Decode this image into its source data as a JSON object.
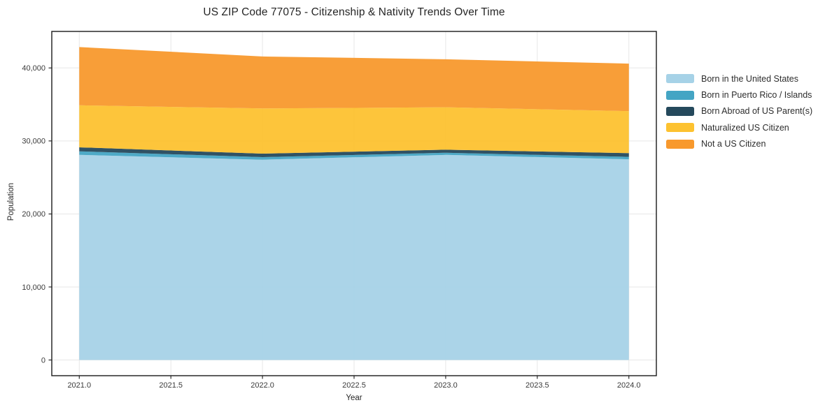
{
  "chart_data": {
    "type": "area",
    "stacked": true,
    "title": "US ZIP Code 77075 - Citizenship & Nativity Trends Over Time",
    "xlabel": "Year",
    "ylabel": "Population",
    "x": [
      2021,
      2022,
      2023,
      2024
    ],
    "series": [
      {
        "name": "Born in the United States",
        "color": "#a6d2e7",
        "values": [
          28100,
          27430,
          28090,
          27490
        ]
      },
      {
        "name": "Born in Puerto Rico / Islands",
        "color": "#44a5c4",
        "values": [
          480,
          350,
          290,
          330
        ]
      },
      {
        "name": "Born Abroad of US Parent(s)",
        "color": "#25495c",
        "values": [
          550,
          480,
          420,
          510
        ]
      },
      {
        "name": "Naturalized US Citizen",
        "color": "#fdc230",
        "values": [
          5750,
          6190,
          5810,
          5750
        ]
      },
      {
        "name": "Not a US Citizen",
        "color": "#f8992d",
        "values": [
          7980,
          7120,
          6580,
          6510
        ]
      }
    ],
    "totals": [
      42860,
      41570,
      41190,
      40590
    ],
    "xticks": [
      2021.0,
      2021.5,
      2022.0,
      2022.5,
      2023.0,
      2023.5,
      2024.0
    ],
    "xtick_labels": [
      "2021.0",
      "2021.5",
      "2022.0",
      "2022.5",
      "2023.0",
      "2023.5",
      "2024.0"
    ],
    "yticks": [
      0,
      10000,
      20000,
      30000,
      40000
    ],
    "ytick_labels": [
      "0",
      "10,000",
      "20,000",
      "30,000",
      "40,000"
    ],
    "xlim": [
      2020.85,
      2024.15
    ],
    "ylim": [
      -2150,
      45000
    ],
    "grid": true,
    "grid_color": "#e7e7e7",
    "spine_color": "#1a1a1a",
    "legend_position": "right-outside"
  }
}
